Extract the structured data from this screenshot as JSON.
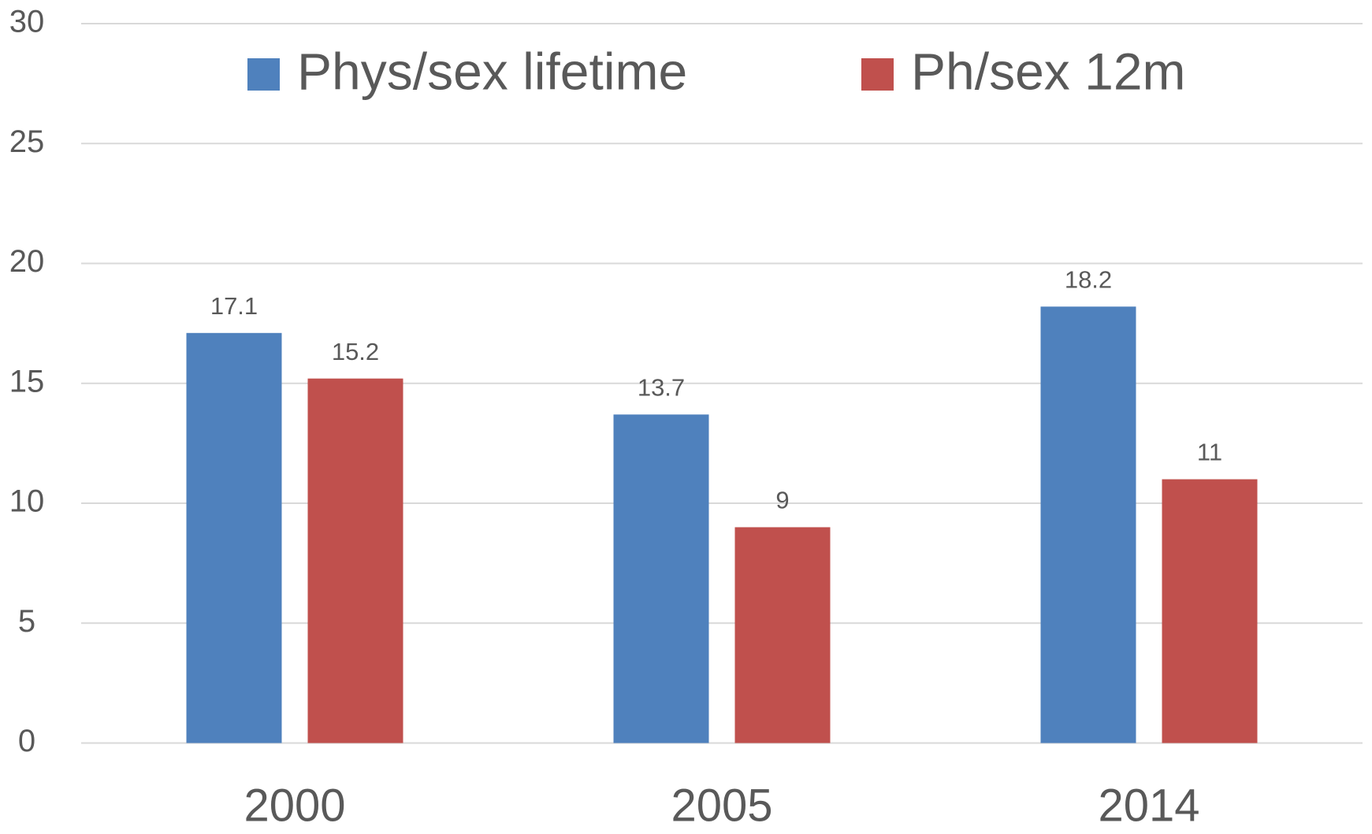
{
  "chart_data": {
    "type": "bar",
    "categories": [
      "2000",
      "2005",
      "2014"
    ],
    "series": [
      {
        "name": "Phys/sex lifetime",
        "color": "#4f81bd",
        "values": [
          17.1,
          13.7,
          18.2
        ]
      },
      {
        "name": "Ph/sex 12m",
        "color": "#c0504d",
        "values": [
          15.2,
          9,
          11
        ]
      }
    ],
    "ylim": [
      0,
      30
    ],
    "yticks": [
      0,
      5,
      10,
      15,
      20,
      25,
      30
    ],
    "grid": true,
    "legend": "top"
  }
}
